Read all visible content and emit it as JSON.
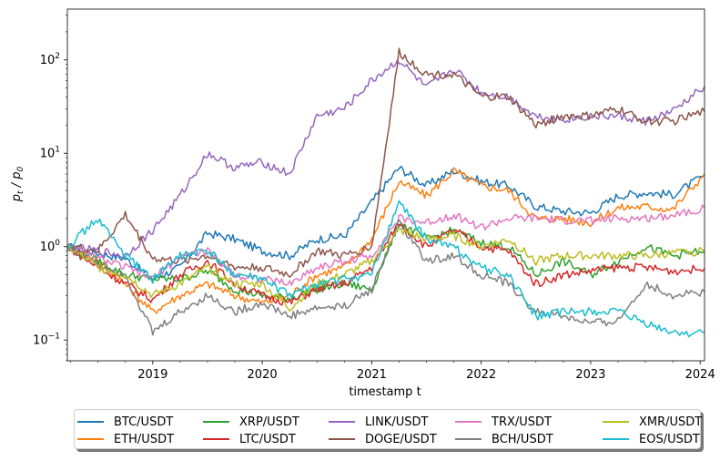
{
  "chart_data": {
    "type": "line",
    "title": "",
    "xlabel": "timestamp t",
    "ylabel": "p_t / p_0",
    "yscale": "log",
    "ylim": [
      0.06,
      350
    ],
    "xlim": [
      2018.22,
      2024.04
    ],
    "x_ticks": [
      "2019",
      "2020",
      "2021",
      "2022",
      "2023",
      "2024"
    ],
    "y_ticks": [
      "10^-1",
      "10^0",
      "10^1",
      "10^2"
    ],
    "legend_position": "below the plot, 5 columns",
    "x": [
      2018.22,
      2018.5,
      2018.75,
      2019.0,
      2019.25,
      2019.5,
      2019.75,
      2020.0,
      2020.25,
      2020.5,
      2020.75,
      2021.0,
      2021.25,
      2021.5,
      2021.75,
      2022.0,
      2022.25,
      2022.5,
      2022.75,
      2023.0,
      2023.25,
      2023.5,
      2023.75,
      2024.04
    ],
    "series": [
      {
        "name": "BTC/USDT",
        "color": "#1f77b4",
        "values": [
          1.0,
          0.85,
          0.75,
          0.45,
          0.6,
          1.4,
          1.2,
          0.9,
          0.8,
          1.2,
          1.3,
          3.0,
          7.0,
          4.5,
          6.5,
          5.0,
          4.5,
          2.7,
          2.4,
          2.3,
          3.5,
          3.8,
          3.6,
          5.8
        ]
      },
      {
        "name": "ETH/USDT",
        "color": "#ff7f0e",
        "values": [
          1.0,
          0.7,
          0.4,
          0.2,
          0.3,
          0.4,
          0.3,
          0.25,
          0.3,
          0.5,
          0.6,
          1.2,
          5.0,
          3.5,
          6.5,
          4.5,
          4.0,
          2.0,
          2.0,
          1.8,
          2.6,
          2.7,
          2.5,
          6.0
        ]
      },
      {
        "name": "XRP/USDT",
        "color": "#2ca02c",
        "values": [
          1.0,
          0.7,
          0.5,
          0.45,
          0.45,
          0.55,
          0.35,
          0.3,
          0.28,
          0.35,
          0.4,
          0.35,
          1.8,
          1.2,
          1.5,
          1.1,
          1.0,
          0.5,
          0.7,
          0.5,
          0.7,
          1.0,
          0.8,
          0.9
        ]
      },
      {
        "name": "LTC/USDT",
        "color": "#d62728",
        "values": [
          1.0,
          0.6,
          0.4,
          0.27,
          0.5,
          0.7,
          0.4,
          0.3,
          0.25,
          0.35,
          0.4,
          0.6,
          1.8,
          1.0,
          1.5,
          1.0,
          0.9,
          0.4,
          0.5,
          0.55,
          0.6,
          0.6,
          0.55,
          0.58
        ]
      },
      {
        "name": "LINK/USDT",
        "color": "#9467bd",
        "values": [
          1.0,
          0.9,
          0.8,
          1.5,
          3.5,
          10.0,
          7.0,
          8.0,
          6.0,
          25.0,
          30.0,
          60.0,
          100.0,
          50.0,
          80.0,
          45.0,
          40.0,
          25.0,
          23.0,
          25.0,
          25.0,
          22.0,
          28.0,
          52.0
        ]
      },
      {
        "name": "DOGE/USDT",
        "color": "#8c564b",
        "values": [
          1.0,
          0.9,
          2.2,
          0.75,
          0.7,
          0.8,
          0.6,
          0.6,
          0.5,
          0.9,
          0.8,
          1.0,
          120.0,
          70.0,
          70.0,
          40.0,
          40.0,
          20.0,
          25.0,
          25.0,
          30.0,
          22.0,
          22.0,
          28.0
        ]
      },
      {
        "name": "TRX/USDT",
        "color": "#e377c2",
        "values": [
          1.0,
          0.75,
          0.6,
          0.45,
          0.8,
          0.9,
          0.5,
          0.45,
          0.4,
          0.6,
          0.7,
          0.8,
          2.0,
          1.8,
          2.2,
          1.6,
          2.0,
          2.0,
          1.9,
          1.9,
          2.0,
          2.0,
          2.2,
          2.6
        ]
      },
      {
        "name": "BCH/USDT",
        "color": "#7f7f7f",
        "values": [
          1.0,
          0.65,
          0.5,
          0.12,
          0.2,
          0.3,
          0.2,
          0.25,
          0.18,
          0.22,
          0.23,
          0.35,
          1.8,
          0.7,
          0.8,
          0.5,
          0.4,
          0.2,
          0.18,
          0.15,
          0.16,
          0.4,
          0.3,
          0.33
        ]
      },
      {
        "name": "XMR/USDT",
        "color": "#bcbd22",
        "values": [
          1.0,
          0.6,
          0.5,
          0.3,
          0.4,
          0.6,
          0.4,
          0.4,
          0.22,
          0.4,
          0.5,
          0.7,
          1.5,
          1.2,
          1.3,
          1.0,
          1.2,
          0.7,
          0.8,
          0.8,
          0.8,
          0.8,
          0.85,
          0.9
        ]
      },
      {
        "name": "EOS/USDT",
        "color": "#17becf",
        "values": [
          1.0,
          2.0,
          0.8,
          0.45,
          0.8,
          0.9,
          0.5,
          0.45,
          0.3,
          0.4,
          0.45,
          0.5,
          3.0,
          1.2,
          1.0,
          0.6,
          0.5,
          0.18,
          0.2,
          0.2,
          0.2,
          0.15,
          0.12,
          0.12
        ]
      }
    ]
  }
}
